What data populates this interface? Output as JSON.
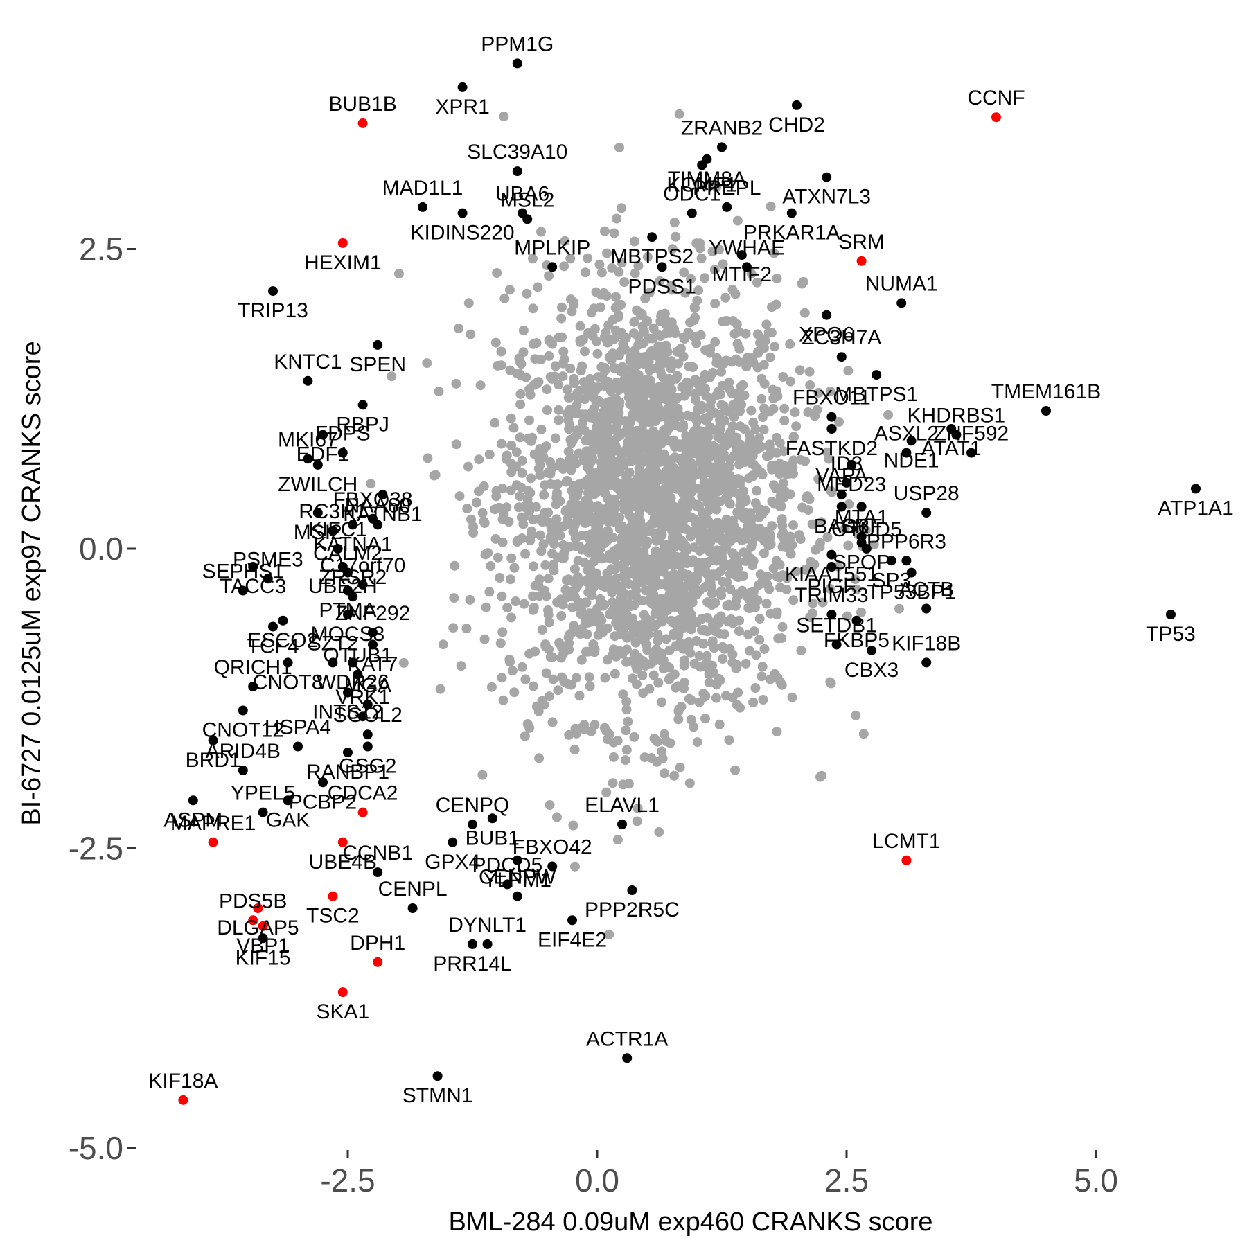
{
  "chart_data": {
    "type": "scatter",
    "xlabel": "BML-284 0.09uM exp460 CRANKS score",
    "ylabel": "BI-6727 0.0125uM exp97 CRANKS score",
    "xlim": [
      -4.7,
      6.4
    ],
    "ylim": [
      -5.0,
      4.2
    ],
    "x_ticks": [
      -2.5,
      0.0,
      2.5,
      5.0
    ],
    "y_ticks": [
      2.5,
      0.0,
      -2.5,
      -5.0
    ],
    "x_tick_labels": [
      "-2.5",
      "0.0",
      "2.5",
      "5.0"
    ],
    "y_tick_labels": [
      "2.5",
      "0.0",
      "-2.5",
      "-5.0"
    ],
    "grid": false,
    "colors": {
      "background": "#f0f0f0",
      "red": "#ff0000",
      "black": "#000000"
    },
    "background_cloud": {
      "x_center": 0.55,
      "y_center": 0.4,
      "x_sd": 0.75,
      "y_sd": 0.9,
      "count": 2500
    },
    "points": [
      {
        "label": "PPM1G",
        "x": -0.8,
        "y": 4.05,
        "color": "black"
      },
      {
        "label": "XPR1",
        "x": -1.35,
        "y": 3.85,
        "color": "black"
      },
      {
        "label": "BUB1B",
        "x": -2.35,
        "y": 3.55,
        "color": "red"
      },
      {
        "label": "CHD2",
        "x": 2.0,
        "y": 3.7,
        "color": "black"
      },
      {
        "label": "CCNF",
        "x": 4.0,
        "y": 3.6,
        "color": "red"
      },
      {
        "label": "TIMM8A",
        "x": 1.1,
        "y": 3.25,
        "color": "black"
      },
      {
        "label": "ZRANB2",
        "x": 1.25,
        "y": 3.35,
        "color": "black"
      },
      {
        "label": "KCMF1",
        "x": 1.05,
        "y": 3.2,
        "color": "black"
      },
      {
        "label": "PREPL",
        "x": 1.3,
        "y": 2.85,
        "color": "black"
      },
      {
        "label": "ATXN7L3",
        "x": 2.3,
        "y": 3.1,
        "color": "black"
      },
      {
        "label": "SLC39A10",
        "x": -0.8,
        "y": 3.15,
        "color": "black"
      },
      {
        "label": "KIDINS220",
        "x": -1.35,
        "y": 2.8,
        "color": "black"
      },
      {
        "label": "MAD1L1",
        "x": -1.75,
        "y": 2.85,
        "color": "black"
      },
      {
        "label": "MBTPS2",
        "x": 0.55,
        "y": 2.6,
        "color": "black"
      },
      {
        "label": "ODC1",
        "x": 0.95,
        "y": 2.8,
        "color": "black"
      },
      {
        "label": "PRKAR1A",
        "x": 1.95,
        "y": 2.8,
        "color": "black"
      },
      {
        "label": "UBA6",
        "x": -0.75,
        "y": 2.8,
        "color": "black"
      },
      {
        "label": "HEXIM1",
        "x": -2.55,
        "y": 2.55,
        "color": "red"
      },
      {
        "label": "MPLKIP",
        "x": -0.45,
        "y": 2.35,
        "color": "black"
      },
      {
        "label": "PDSS1",
        "x": 0.65,
        "y": 2.35,
        "color": "black"
      },
      {
        "label": "SRM",
        "x": 2.65,
        "y": 2.4,
        "color": "red"
      },
      {
        "label": "TRIP13",
        "x": -3.25,
        "y": 2.15,
        "color": "black"
      },
      {
        "label": "MSL2",
        "x": -0.7,
        "y": 2.75,
        "color": "black"
      },
      {
        "label": "MTIF2",
        "x": 1.45,
        "y": 2.45,
        "color": "black"
      },
      {
        "label": "YWHAE",
        "x": 1.5,
        "y": 2.35,
        "color": "black"
      },
      {
        "label": "XPO6",
        "x": 2.3,
        "y": 1.95,
        "color": "black"
      },
      {
        "label": "NUMA1",
        "x": 3.05,
        "y": 2.05,
        "color": "black"
      },
      {
        "label": "SPEN",
        "x": -2.2,
        "y": 1.7,
        "color": "black"
      },
      {
        "label": "ZC3H7A",
        "x": 2.45,
        "y": 1.6,
        "color": "black"
      },
      {
        "label": "MBTPS1",
        "x": 2.8,
        "y": 1.45,
        "color": "black"
      },
      {
        "label": "KNTC1",
        "x": -2.9,
        "y": 1.4,
        "color": "black"
      },
      {
        "label": "RBPJ",
        "x": -2.35,
        "y": 1.2,
        "color": "black"
      },
      {
        "label": "TMEM161B",
        "x": 4.5,
        "y": 1.15,
        "color": "black"
      },
      {
        "label": "ATAT1",
        "x": 3.55,
        "y": 1.0,
        "color": "black"
      },
      {
        "label": "FBXO11",
        "x": 2.35,
        "y": 1.1,
        "color": "black"
      },
      {
        "label": "FASTKD2",
        "x": 2.35,
        "y": 1.0,
        "color": "black"
      },
      {
        "label": "KHDRBS1",
        "x": 3.6,
        "y": 0.95,
        "color": "black"
      },
      {
        "label": "NDE1",
        "x": 3.15,
        "y": 0.9,
        "color": "black"
      },
      {
        "label": "ASXL2",
        "x": 3.1,
        "y": 0.8,
        "color": "black"
      },
      {
        "label": "MED23",
        "x": 2.55,
        "y": 0.7,
        "color": "black"
      },
      {
        "label": "ZNF592",
        "x": 3.75,
        "y": 0.8,
        "color": "black"
      },
      {
        "label": "EDF1",
        "x": -2.75,
        "y": 0.95,
        "color": "black"
      },
      {
        "label": "FDPS",
        "x": -2.55,
        "y": 0.8,
        "color": "black"
      },
      {
        "label": "ZWILCH",
        "x": -2.8,
        "y": 0.7,
        "color": "black"
      },
      {
        "label": "MKI67",
        "x": -2.9,
        "y": 0.75,
        "color": "black"
      },
      {
        "label": "ATP1A1",
        "x": 6.0,
        "y": 0.5,
        "color": "black"
      },
      {
        "label": "ID3",
        "x": 2.5,
        "y": 0.55,
        "color": "black"
      },
      {
        "label": "SRF",
        "x": 2.65,
        "y": 0.35,
        "color": "black"
      },
      {
        "label": "VAPA",
        "x": 2.45,
        "y": 0.45,
        "color": "black"
      },
      {
        "label": "BAG6",
        "x": 2.45,
        "y": 0.35,
        "color": "black"
      },
      {
        "label": "USP28",
        "x": 3.3,
        "y": 0.3,
        "color": "black"
      },
      {
        "label": "MSI2",
        "x": -2.8,
        "y": 0.3,
        "color": "black"
      },
      {
        "label": "RC3H1",
        "x": -2.65,
        "y": 0.15,
        "color": "black"
      },
      {
        "label": "KATNB1",
        "x": -2.15,
        "y": 0.45,
        "color": "black"
      },
      {
        "label": "FBXO38",
        "x": -2.25,
        "y": 0.25,
        "color": "black"
      },
      {
        "label": "KATNA1",
        "x": -2.45,
        "y": 0.2,
        "color": "black"
      },
      {
        "label": "NAA60",
        "x": -2.2,
        "y": 0.2,
        "color": "black"
      },
      {
        "label": "SPOP",
        "x": 2.65,
        "y": 0.05,
        "color": "black"
      },
      {
        "label": "KIFC1",
        "x": -2.6,
        "y": 0.0,
        "color": "black"
      },
      {
        "label": "UBE2H",
        "x": -2.55,
        "y": -0.15,
        "color": "black"
      },
      {
        "label": "MTA1",
        "x": 2.65,
        "y": 0.1,
        "color": "black"
      },
      {
        "label": "KIAA1551",
        "x": 2.35,
        "y": -0.05,
        "color": "black"
      },
      {
        "label": "PPP6R3",
        "x": 3.1,
        "y": -0.1,
        "color": "black"
      },
      {
        "label": "SP3",
        "x": 2.95,
        "y": -0.1,
        "color": "black"
      },
      {
        "label": "CALM2",
        "x": -2.5,
        "y": -0.2,
        "color": "black"
      },
      {
        "label": "TACC3",
        "x": -3.45,
        "y": -0.15,
        "color": "black"
      },
      {
        "label": "PSME3",
        "x": -3.3,
        "y": -0.25,
        "color": "black"
      },
      {
        "label": "PTMA",
        "x": -2.5,
        "y": -0.35,
        "color": "black"
      },
      {
        "label": "C17orf70",
        "x": -2.35,
        "y": -0.3,
        "color": "black"
      },
      {
        "label": "PIGF",
        "x": 2.35,
        "y": -0.15,
        "color": "black"
      },
      {
        "label": "OTUD5",
        "x": 2.7,
        "y": 0.0,
        "color": "black"
      },
      {
        "label": "TP53BP1",
        "x": 3.15,
        "y": -0.2,
        "color": "black"
      },
      {
        "label": "ZRSR2",
        "x": -2.45,
        "y": -0.4,
        "color": "black"
      },
      {
        "label": "MOCS3",
        "x": -2.5,
        "y": -0.55,
        "color": "black"
      },
      {
        "label": "SEPHS1",
        "x": -3.55,
        "y": -0.35,
        "color": "black"
      },
      {
        "label": "ESCO2",
        "x": -3.15,
        "y": -0.6,
        "color": "black"
      },
      {
        "label": "TRIM33",
        "x": 2.35,
        "y": -0.55,
        "color": "black"
      },
      {
        "label": "FKBP5",
        "x": 2.6,
        "y": -0.6,
        "color": "black"
      },
      {
        "label": "ACTB",
        "x": 3.3,
        "y": -0.5,
        "color": "black"
      },
      {
        "label": "TP53",
        "x": 5.75,
        "y": -0.55,
        "color": "black"
      },
      {
        "label": "ZNF292",
        "x": -2.25,
        "y": -0.7,
        "color": "black"
      },
      {
        "label": "KAT7",
        "x": -2.25,
        "y": -0.8,
        "color": "black"
      },
      {
        "label": "SZT2",
        "x": -2.65,
        "y": -0.95,
        "color": "black"
      },
      {
        "label": "TCF4",
        "x": -3.25,
        "y": -0.65,
        "color": "black"
      },
      {
        "label": "SETDB1",
        "x": 2.4,
        "y": -0.8,
        "color": "black"
      },
      {
        "label": "CBX3",
        "x": 2.75,
        "y": -0.85,
        "color": "black"
      },
      {
        "label": "KIF18B",
        "x": 3.3,
        "y": -0.95,
        "color": "black"
      },
      {
        "label": "WDR26",
        "x": -2.45,
        "y": -0.95,
        "color": "black"
      },
      {
        "label": "OTUB1",
        "x": -2.4,
        "y": -1.05,
        "color": "black"
      },
      {
        "label": "CNOT8",
        "x": -3.1,
        "y": -0.95,
        "color": "black"
      },
      {
        "label": "QRICH1",
        "x": -3.45,
        "y": -1.15,
        "color": "black"
      },
      {
        "label": "INTS12",
        "x": -2.5,
        "y": -1.2,
        "color": "black"
      },
      {
        "label": "MGA",
        "x": -2.3,
        "y": -1.3,
        "color": "black"
      },
      {
        "label": "CNOT12",
        "x": -3.55,
        "y": -1.35,
        "color": "black"
      },
      {
        "label": "VRK1",
        "x": -2.35,
        "y": -1.4,
        "color": "black"
      },
      {
        "label": "BRD1",
        "x": -3.85,
        "y": -1.6,
        "color": "black"
      },
      {
        "label": "SGOL2",
        "x": -2.3,
        "y": -1.55,
        "color": "black"
      },
      {
        "label": "GSG2",
        "x": -2.3,
        "y": -1.65,
        "color": "black"
      },
      {
        "label": "HSPA4",
        "x": -3.0,
        "y": -1.65,
        "color": "black"
      },
      {
        "label": "RANBP1",
        "x": -2.5,
        "y": -1.7,
        "color": "black"
      },
      {
        "label": "ARID4B",
        "x": -3.55,
        "y": -1.85,
        "color": "black"
      },
      {
        "label": "PCBP2",
        "x": -2.75,
        "y": -1.95,
        "color": "black"
      },
      {
        "label": "CENPQ",
        "x": -1.25,
        "y": -2.3,
        "color": "black"
      },
      {
        "label": "BUB1",
        "x": -1.05,
        "y": -2.25,
        "color": "black"
      },
      {
        "label": "ELAVL1",
        "x": 0.25,
        "y": -2.3,
        "color": "black"
      },
      {
        "label": "ASPM",
        "x": -4.05,
        "y": -2.1,
        "color": "black"
      },
      {
        "label": "YPEL5",
        "x": -3.35,
        "y": -2.2,
        "color": "black"
      },
      {
        "label": "GAK",
        "x": -3.1,
        "y": -2.1,
        "color": "black"
      },
      {
        "label": "CDCA2",
        "x": -2.35,
        "y": -2.2,
        "color": "red"
      },
      {
        "label": "GPX4",
        "x": -1.45,
        "y": -2.45,
        "color": "black"
      },
      {
        "label": "MAPRE1",
        "x": -3.85,
        "y": -2.45,
        "color": "red"
      },
      {
        "label": "UBE4B",
        "x": -2.55,
        "y": -2.45,
        "color": "red"
      },
      {
        "label": "CCNB1",
        "x": -2.2,
        "y": -2.7,
        "color": "black"
      },
      {
        "label": "YLPM1",
        "x": -0.8,
        "y": -2.6,
        "color": "black"
      },
      {
        "label": "FBXO42",
        "x": -0.45,
        "y": -2.65,
        "color": "black"
      },
      {
        "label": "TSC2",
        "x": -2.65,
        "y": -2.9,
        "color": "red"
      },
      {
        "label": "LCMT1",
        "x": 3.1,
        "y": -2.6,
        "color": "red"
      },
      {
        "label": "PPP2R5C",
        "x": 0.35,
        "y": -2.85,
        "color": "black"
      },
      {
        "label": "PDCD5",
        "x": -0.9,
        "y": -2.8,
        "color": "black"
      },
      {
        "label": "DLGAP5",
        "x": -3.4,
        "y": -3.0,
        "color": "red"
      },
      {
        "label": "CENPL",
        "x": -1.85,
        "y": -3.0,
        "color": "black"
      },
      {
        "label": "VBP1",
        "x": -3.35,
        "y": -3.15,
        "color": "red"
      },
      {
        "label": "PDS5B",
        "x": -3.45,
        "y": -3.1,
        "color": "red"
      },
      {
        "label": "EIF4E2",
        "x": -0.25,
        "y": -3.1,
        "color": "black"
      },
      {
        "label": "DYNLT1",
        "x": -1.1,
        "y": -3.3,
        "color": "black"
      },
      {
        "label": "PRR14L",
        "x": -1.25,
        "y": -3.3,
        "color": "black"
      },
      {
        "label": "DPH1",
        "x": -2.2,
        "y": -3.45,
        "color": "red"
      },
      {
        "label": "KIF15",
        "x": -3.35,
        "y": -3.25,
        "color": "black"
      },
      {
        "label": "CENPW",
        "x": -0.8,
        "y": -2.9,
        "color": "black"
      },
      {
        "label": "SKA1",
        "x": -2.55,
        "y": -3.7,
        "color": "red"
      },
      {
        "label": "ACTR1A",
        "x": 0.3,
        "y": -4.25,
        "color": "black"
      },
      {
        "label": "STMN1",
        "x": -1.6,
        "y": -4.4,
        "color": "black"
      },
      {
        "label": "KIF18A",
        "x": -4.15,
        "y": -4.6,
        "color": "red"
      }
    ]
  }
}
